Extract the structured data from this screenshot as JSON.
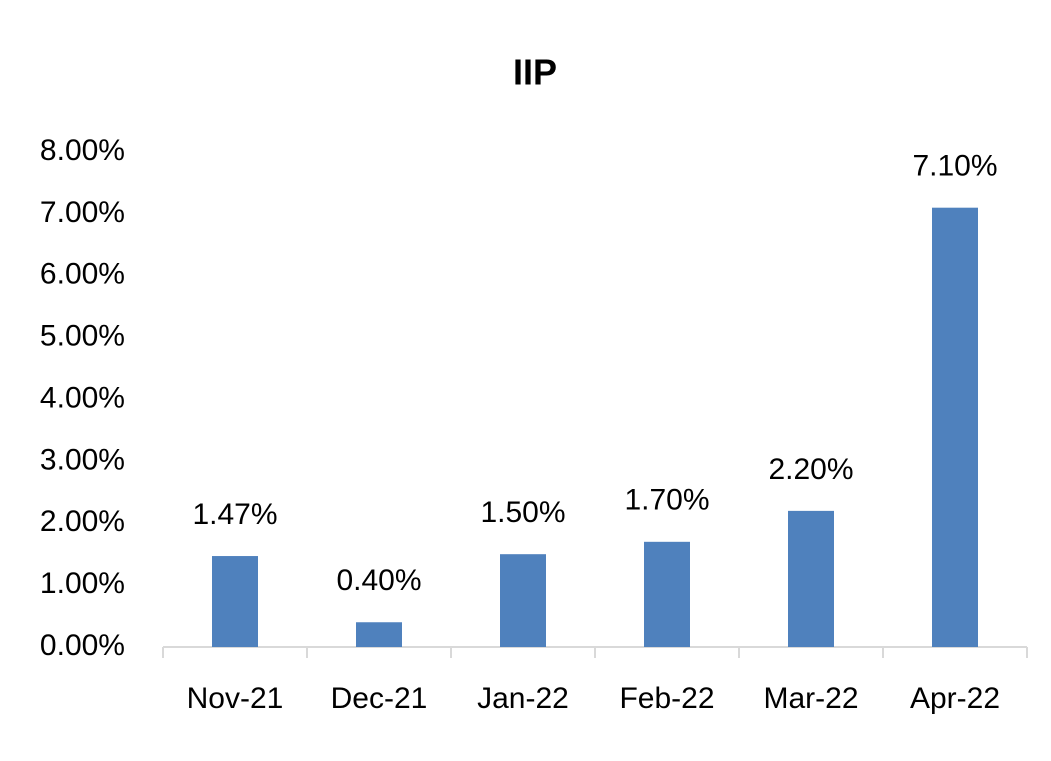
{
  "chart_data": {
    "type": "bar",
    "title": "IIP",
    "categories": [
      "Nov-21",
      "Dec-21",
      "Jan-22",
      "Feb-22",
      "Mar-22",
      "Apr-22"
    ],
    "values": [
      1.47,
      0.4,
      1.5,
      1.7,
      2.2,
      7.1
    ],
    "value_labels": [
      "1.47%",
      "0.40%",
      "1.50%",
      "1.70%",
      "2.20%",
      "7.10%"
    ],
    "color": "#4f81bd",
    "ylim": [
      0,
      8
    ],
    "yticks": [
      {
        "value": 0,
        "label": "0.00%"
      },
      {
        "value": 1,
        "label": "1.00%"
      },
      {
        "value": 2,
        "label": "2.00%"
      },
      {
        "value": 3,
        "label": "3.00%"
      },
      {
        "value": 4,
        "label": "4.00%"
      },
      {
        "value": 5,
        "label": "5.00%"
      },
      {
        "value": 6,
        "label": "6.00%"
      },
      {
        "value": 7,
        "label": "7.00%"
      },
      {
        "value": 8,
        "label": "8.00%"
      }
    ],
    "grid": false
  }
}
